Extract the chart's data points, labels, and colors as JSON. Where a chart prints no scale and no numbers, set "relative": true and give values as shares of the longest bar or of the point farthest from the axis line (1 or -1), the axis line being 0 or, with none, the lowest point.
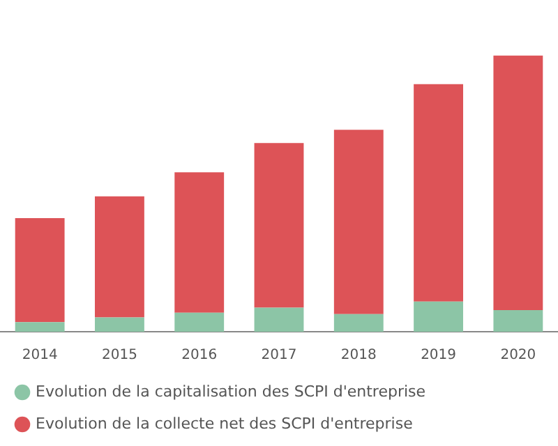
{
  "chart_data": {
    "type": "bar",
    "stacked": true,
    "relative": true,
    "legend": "bottom",
    "categories": [
      "2014",
      "2015",
      "2016",
      "2017",
      "2018",
      "2019",
      "2020"
    ],
    "series": [
      {
        "name": "Evolution de la capitalisation des SCPI d'entreprise",
        "color": "#8cc5a6",
        "values": [
          0.035,
          0.052,
          0.069,
          0.087,
          0.064,
          0.109,
          0.078
        ]
      },
      {
        "name": "Evolution de la collecte net des SCPI d'entreprise",
        "color": "#dd5357",
        "values": [
          0.376,
          0.438,
          0.508,
          0.596,
          0.667,
          0.787,
          0.922
        ]
      }
    ]
  }
}
